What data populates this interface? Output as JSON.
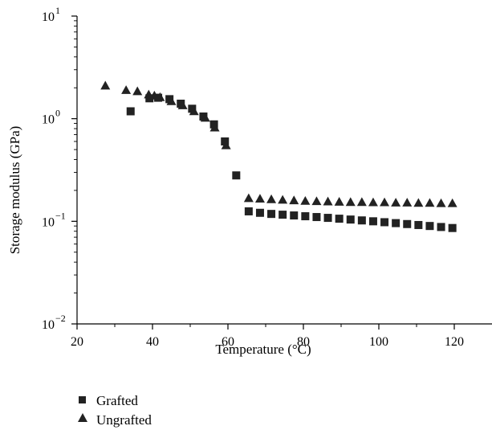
{
  "chart_data": {
    "type": "scatter",
    "xlabel": "Temperature (°C)",
    "ylabel": "Storage modulus (GPa)",
    "xlim": [
      20,
      130
    ],
    "ylim": [
      0.01,
      10
    ],
    "yscale": "log",
    "xticks": [
      20,
      40,
      60,
      80,
      100,
      120
    ],
    "yticks": [
      {
        "value": 0.01,
        "base": "10",
        "exp": "−2"
      },
      {
        "value": 0.1,
        "base": "10",
        "exp": "−1"
      },
      {
        "value": 1,
        "base": "10",
        "exp": "0"
      },
      {
        "value": 10,
        "base": "10",
        "exp": "1"
      }
    ],
    "grid": false,
    "legend_position": "bottom-left",
    "series": [
      {
        "name": "Grafted",
        "marker": "square",
        "color": "#222222",
        "x": [
          34.2,
          39.2,
          41.5,
          44.5,
          47.5,
          50.5,
          53.5,
          56.3,
          59.2,
          62.2,
          65.5,
          68.5,
          71.5,
          74.5,
          77.5,
          80.5,
          83.5,
          86.5,
          89.5,
          92.5,
          95.5,
          98.5,
          101.5,
          104.5,
          107.5,
          110.5,
          113.5,
          116.5,
          119.5
        ],
        "y": [
          1.18,
          1.58,
          1.6,
          1.55,
          1.4,
          1.25,
          1.05,
          0.88,
          0.6,
          0.28,
          0.125,
          0.121,
          0.118,
          0.116,
          0.114,
          0.112,
          0.11,
          0.108,
          0.106,
          0.104,
          0.102,
          0.1,
          0.098,
          0.096,
          0.094,
          0.092,
          0.09,
          0.088,
          0.086
        ]
      },
      {
        "name": "Ungrafted",
        "marker": "triangle",
        "color": "#222222",
        "x": [
          27.5,
          33,
          36,
          39,
          40.5,
          42,
          45,
          48,
          51,
          54,
          56.5,
          59.5,
          65.5,
          68.5,
          71.5,
          74.5,
          77.5,
          80.5,
          83.5,
          86.5,
          89.5,
          92.5,
          95.5,
          98.5,
          101.5,
          104.5,
          107.5,
          110.5,
          113.5,
          116.5,
          119.5
        ],
        "y": [
          2.1,
          1.9,
          1.85,
          1.72,
          1.68,
          1.62,
          1.48,
          1.35,
          1.18,
          1.02,
          0.82,
          0.55,
          0.168,
          0.166,
          0.164,
          0.162,
          0.16,
          0.158,
          0.157,
          0.156,
          0.155,
          0.154,
          0.154,
          0.153,
          0.153,
          0.152,
          0.152,
          0.151,
          0.151,
          0.15,
          0.15
        ]
      }
    ]
  }
}
